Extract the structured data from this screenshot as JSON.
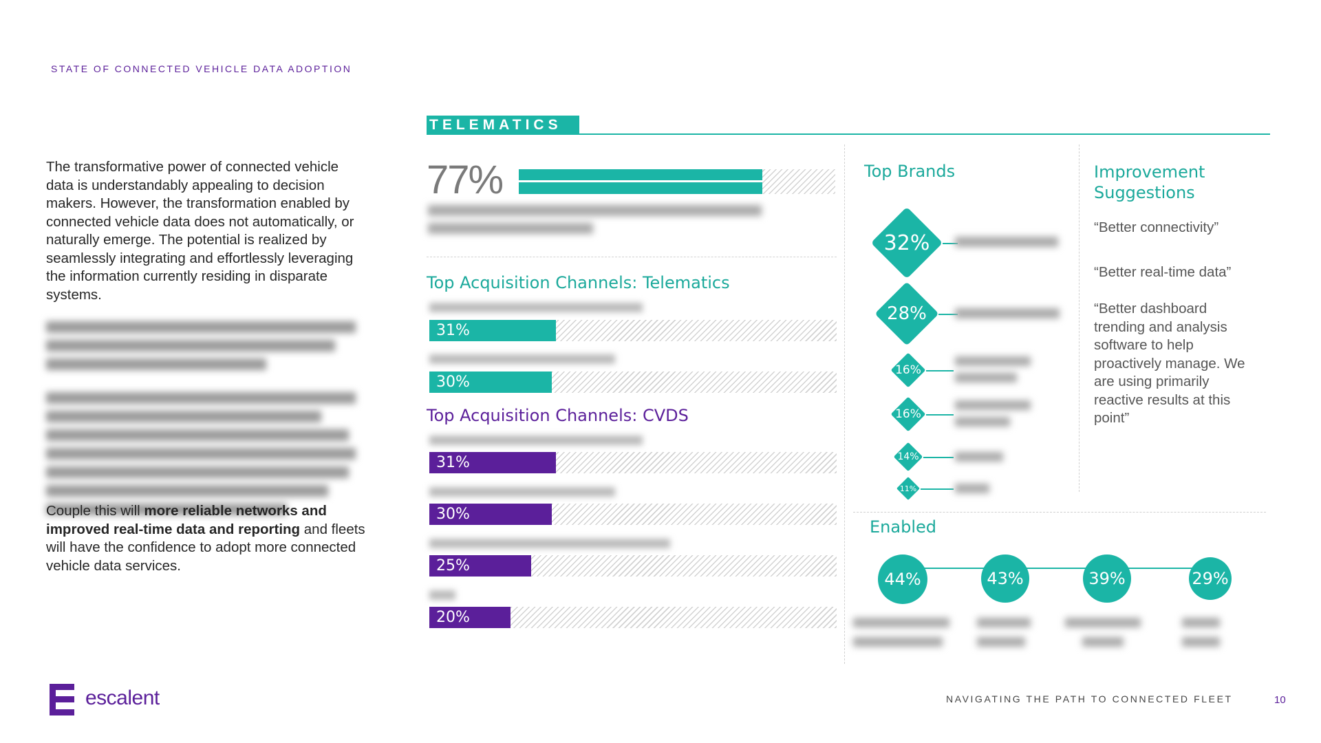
{
  "header": {
    "section_label": "STATE OF CONNECTED VEHICLE DATA ADOPTION"
  },
  "left_column": {
    "paragraph1": "The transformative power of connected vehicle data is understandably appealing to decision makers.  However, the transformation enabled by connected vehicle data does not automatically, or naturally emerge. The potential is realized by seamlessly integrating and effortlessly leveraging the information currently residing in disparate systems.",
    "paragraph4_start": "Couple this will ",
    "paragraph4_bold": "more reliable networks and improved real-time data and reporting",
    "paragraph4_end": " and fleets will have the confidence to adopt more connected vehicle data services."
  },
  "telematics": {
    "tab_label": "TELEMATICS",
    "big_stat": {
      "value": "77%",
      "fraction": 0.77
    },
    "channels_title": "Top Acquisition Channels: Telematics",
    "channels": [
      {
        "value": "31%",
        "fraction": 0.31
      },
      {
        "value": "30%",
        "fraction": 0.3
      }
    ],
    "cvds_title": "Top Acquisition Channels: CVDS",
    "cvds": [
      {
        "value": "31%",
        "fraction": 0.31
      },
      {
        "value": "30%",
        "fraction": 0.3
      },
      {
        "value": "25%",
        "fraction": 0.25
      },
      {
        "value": "20%",
        "fraction": 0.2
      }
    ]
  },
  "brands": {
    "title": "Top Brands",
    "items": [
      {
        "value": "32%"
      },
      {
        "value": "28%"
      },
      {
        "value": "16%"
      },
      {
        "value": "16%"
      },
      {
        "value": "14%"
      },
      {
        "value": "11%"
      }
    ]
  },
  "improvements": {
    "title": "Improvement Suggestions",
    "quotes": [
      "“Better connectivity”",
      "“Better real-time data”",
      "“Better dashboard trending and analysis software to help proactively manage. We are using primarily reactive results at this point”"
    ]
  },
  "enabled": {
    "title": "Enabled",
    "items": [
      {
        "value": "44%"
      },
      {
        "value": "43%"
      },
      {
        "value": "39%"
      },
      {
        "value": "29%"
      }
    ]
  },
  "footer": {
    "title": "NAVIGATING THE PATH TO CONNECTED FLEET",
    "page_number": "10",
    "logo_text": "escalent"
  },
  "colors": {
    "teal": "#1bb5a6",
    "purple": "#5b1f9a"
  }
}
